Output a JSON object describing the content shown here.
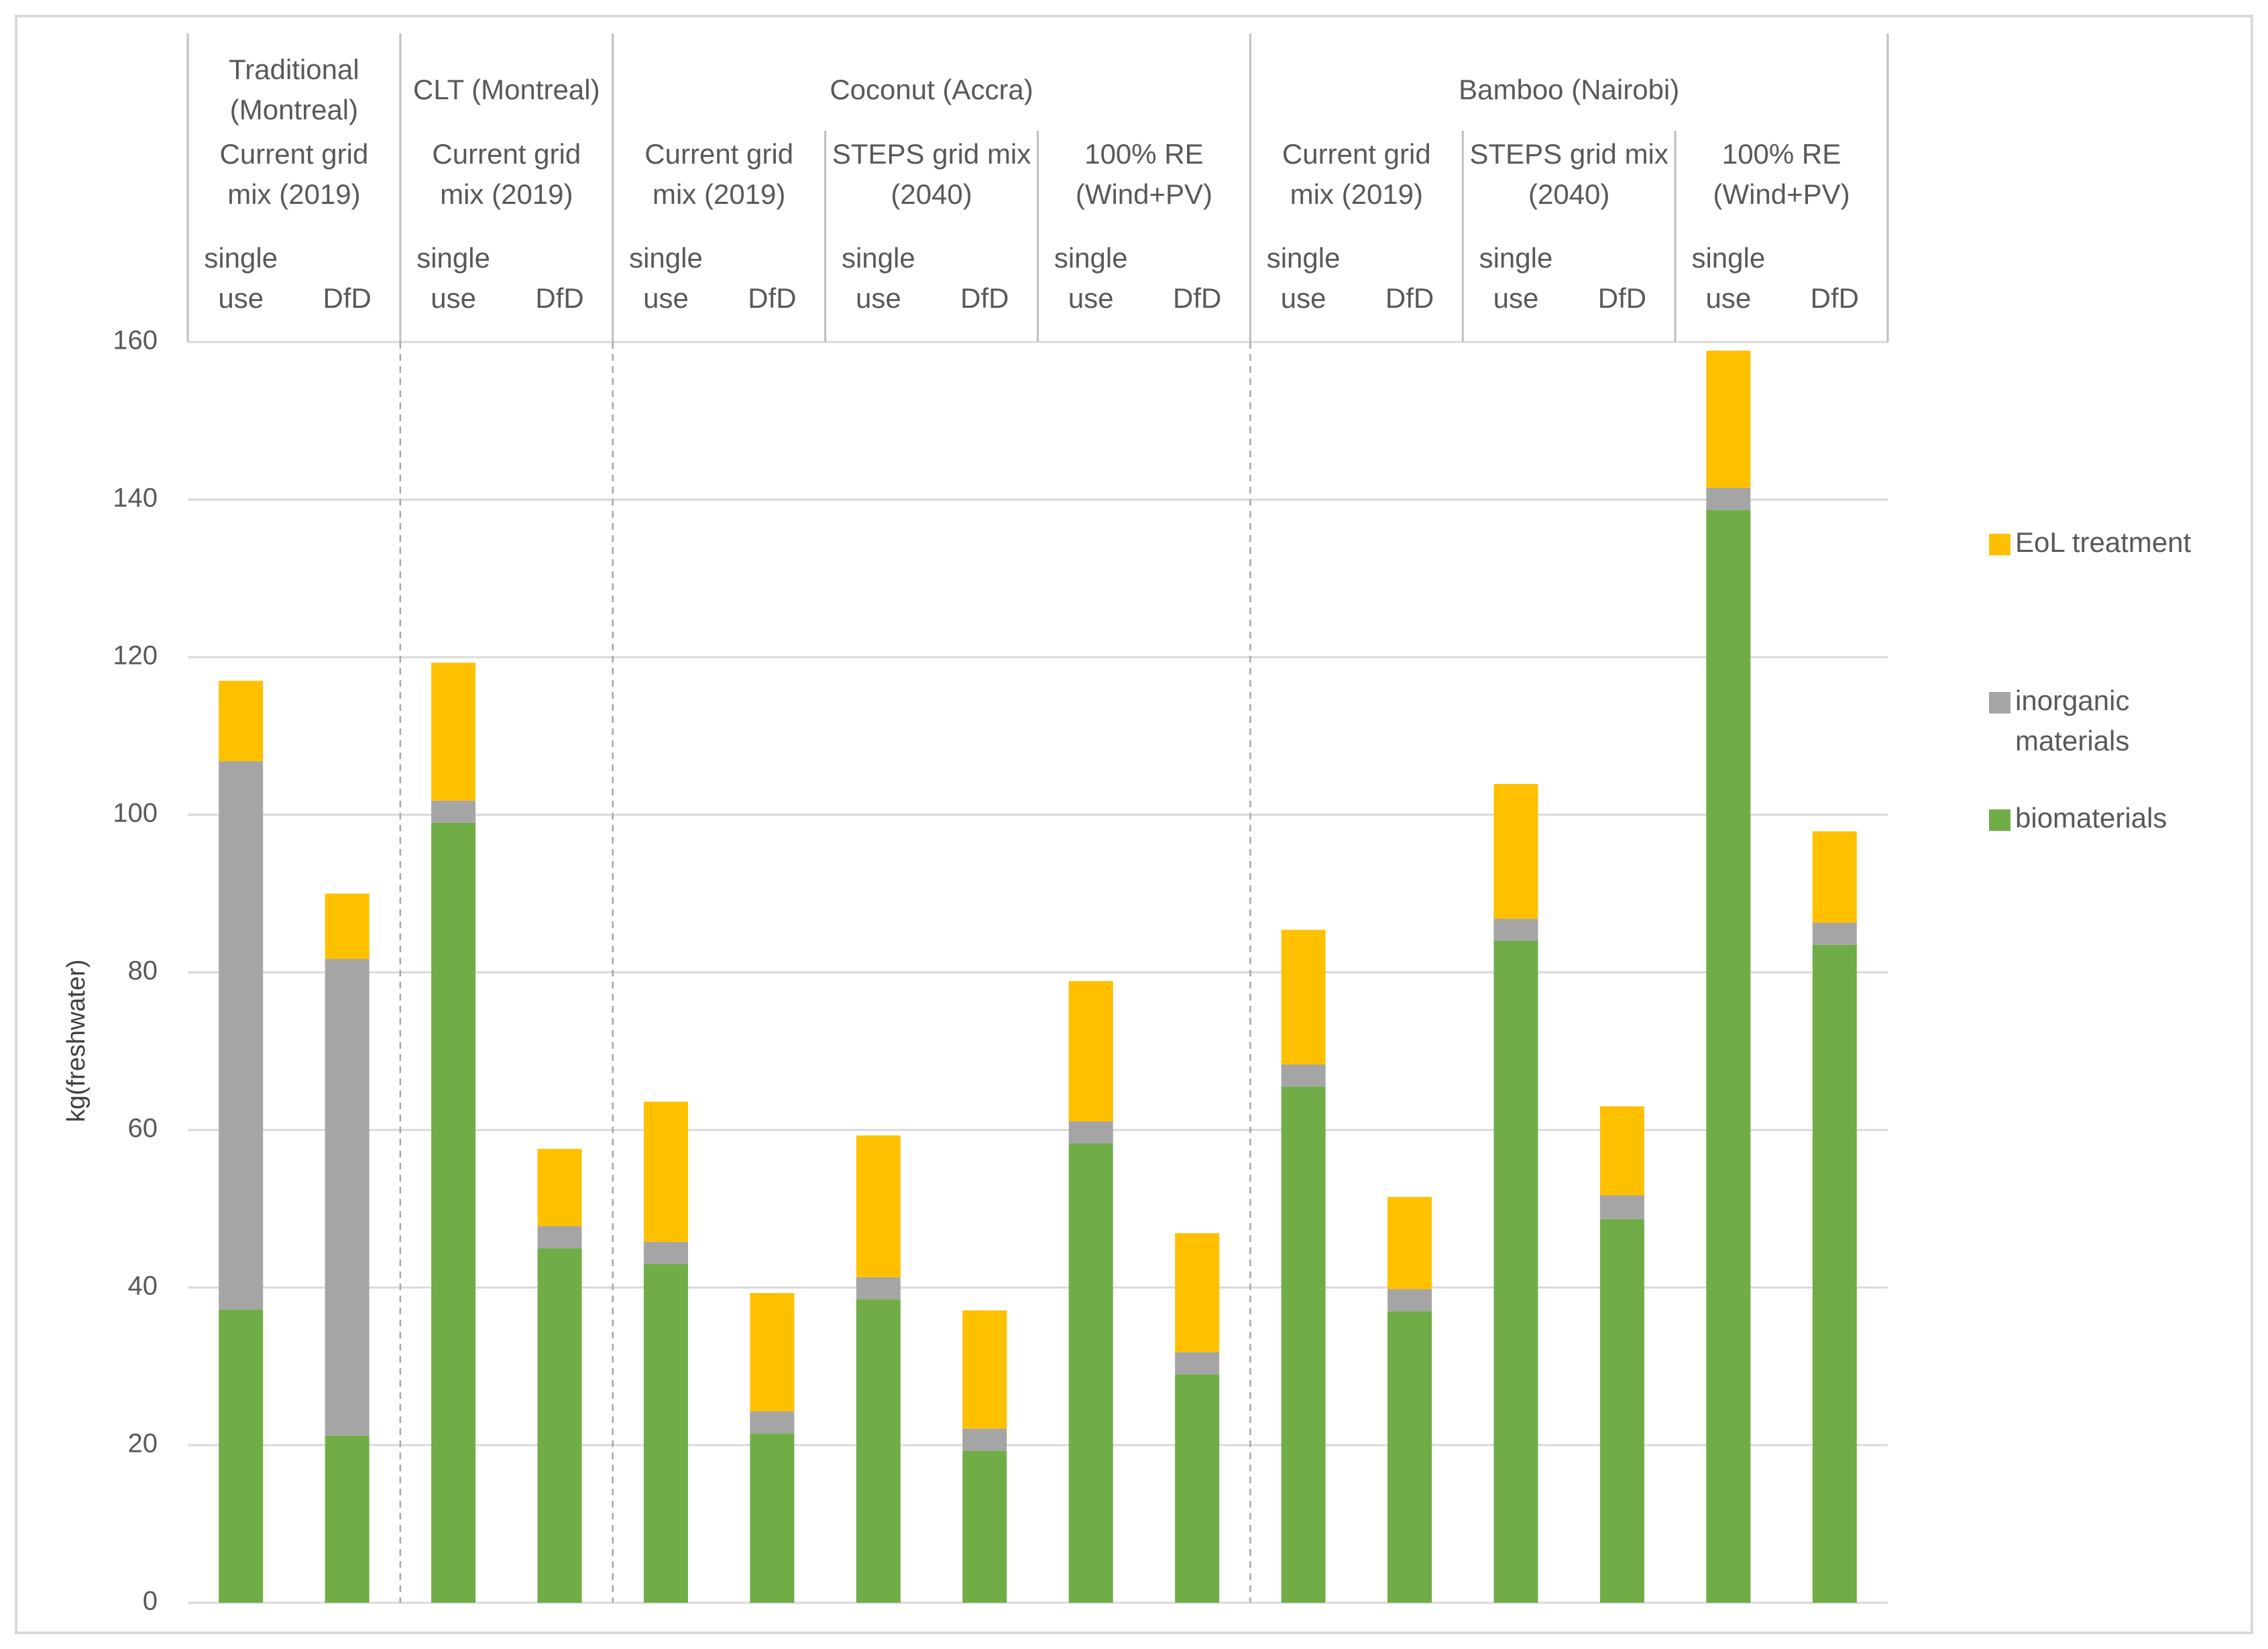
{
  "chart_data": {
    "type": "bar",
    "stacked": true,
    "ylabel": "kg(freshwater)",
    "ylim": [
      0,
      160
    ],
    "yticks": [
      0,
      20,
      40,
      60,
      80,
      100,
      120,
      140,
      160
    ],
    "grid": true,
    "legend_position": "right",
    "groups": [
      {
        "label_lines": [
          "Traditional",
          "(Montreal)"
        ],
        "span": [
          0,
          1
        ]
      },
      {
        "label_lines": [
          "CLT (Montreal)"
        ],
        "span": [
          2,
          3
        ]
      },
      {
        "label_lines": [
          "Coconut (Accra)"
        ],
        "span": [
          4,
          9
        ]
      },
      {
        "label_lines": [
          "Bamboo (Nairobi)"
        ],
        "span": [
          10,
          15
        ]
      }
    ],
    "scenarios": [
      {
        "label_lines": [
          "Current grid",
          "mix (2019)"
        ],
        "span": [
          0,
          1
        ]
      },
      {
        "label_lines": [
          "Current grid",
          "mix (2019)"
        ],
        "span": [
          2,
          3
        ]
      },
      {
        "label_lines": [
          "Current grid",
          "mix (2019)"
        ],
        "span": [
          4,
          5
        ]
      },
      {
        "label_lines": [
          "STEPS grid mix",
          "(2040)"
        ],
        "span": [
          6,
          7
        ]
      },
      {
        "label_lines": [
          "100% RE",
          "(Wind+PV)"
        ],
        "span": [
          8,
          9
        ]
      },
      {
        "label_lines": [
          "Current grid",
          "mix (2019)"
        ],
        "span": [
          10,
          11
        ]
      },
      {
        "label_lines": [
          "STEPS grid mix",
          "(2040)"
        ],
        "span": [
          12,
          13
        ]
      },
      {
        "label_lines": [
          "100% RE",
          "(Wind+PV)"
        ],
        "span": [
          14,
          15
        ]
      }
    ],
    "categories": [
      [
        "single",
        "use"
      ],
      [
        "DfD"
      ],
      [
        "single",
        "use"
      ],
      [
        "DfD"
      ],
      [
        "single",
        "use"
      ],
      [
        "DfD"
      ],
      [
        "single",
        "use"
      ],
      [
        "DfD"
      ],
      [
        "single",
        "use"
      ],
      [
        "DfD"
      ],
      [
        "single",
        "use"
      ],
      [
        "DfD"
      ],
      [
        "single",
        "use"
      ],
      [
        "DfD"
      ],
      [
        "single",
        "use"
      ],
      [
        "DfD"
      ]
    ],
    "series": [
      {
        "name": "biomaterials",
        "color": "#70AD47",
        "values": [
          37.2,
          21.2,
          99.0,
          45.0,
          43.0,
          21.5,
          38.5,
          19.3,
          58.3,
          29.0,
          65.5,
          37.0,
          84.0,
          48.7,
          138.7,
          83.5
        ]
      },
      {
        "name": "inorganic materials",
        "color": "#A5A5A5",
        "values": [
          69.6,
          60.5,
          2.8,
          2.8,
          2.8,
          2.8,
          2.8,
          2.8,
          2.8,
          2.8,
          2.8,
          2.8,
          2.8,
          3.0,
          2.8,
          2.8
        ]
      },
      {
        "name": "EoL treatment",
        "color": "#FFC000",
        "values": [
          10.2,
          8.3,
          17.5,
          9.8,
          17.8,
          15.0,
          18.0,
          15.0,
          17.8,
          15.1,
          17.1,
          11.7,
          17.1,
          11.3,
          17.4,
          11.6
        ]
      }
    ],
    "legend": [
      {
        "label_lines": [
          "EoL treatment"
        ],
        "color": "#FFC000"
      },
      {
        "label_lines": [
          "inorganic",
          "materials"
        ],
        "color": "#A5A5A5"
      },
      {
        "label_lines": [
          "biomaterials"
        ],
        "color": "#70AD47"
      }
    ]
  }
}
